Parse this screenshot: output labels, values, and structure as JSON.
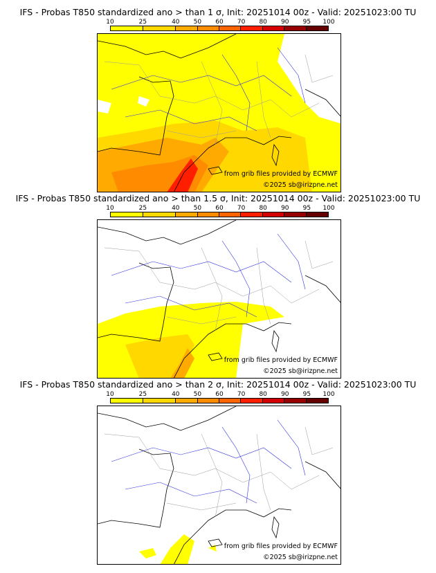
{
  "colorbar": {
    "ticks": [
      "10",
      "25",
      "40",
      "50",
      "60",
      "70",
      "80",
      "90",
      "95",
      "100"
    ],
    "colors": [
      "#ffff00",
      "#ffd800",
      "#ffaa00",
      "#ff8c00",
      "#ff6400",
      "#ff1e00",
      "#d20000",
      "#960000",
      "#640000"
    ]
  },
  "panels": [
    {
      "title": "IFS - Probas T850  standardized ano > than 1 σ, Init: 20251014 00z - Valid: 20251023:00 TU"
    },
    {
      "title": "IFS - Probas T850  standardized ano > than 1.5 σ, Init: 20251014 00z - Valid: 20251023:00 TU"
    },
    {
      "title": "IFS - Probas T850  standardized ano > than 2 σ, Init: 20251014 00z - Valid: 20251023:00 TU"
    }
  ],
  "credits": {
    "source": "from grib files provided by ECMWF",
    "copyright": "©2025 sb@irizpne.net"
  }
}
